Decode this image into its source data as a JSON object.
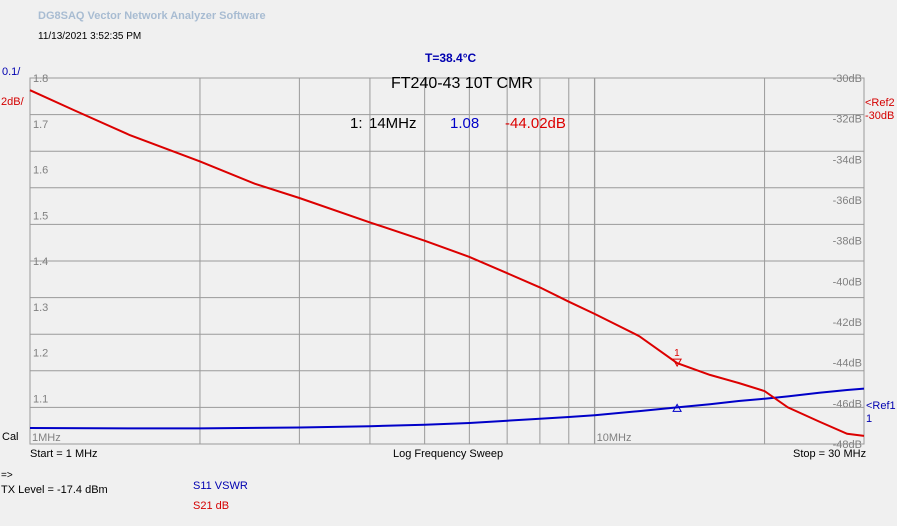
{
  "app_title": "DG8SAQ Vector Network Analyzer Software",
  "timestamp": "11/13/2021   3:52:35 PM",
  "temperature": "T=38.4°C",
  "left_scale": "0.1/",
  "left_ref": "2dB/",
  "right_ref2": [
    "<Ref2",
    "-30dB"
  ],
  "right_ref1": [
    "<Ref1",
    "1"
  ],
  "cal_label": "Cal",
  "footer": {
    "start": "Start = 1 MHz",
    "sweep": "Log Frequency Sweep",
    "stop": "Stop = 30 MHz"
  },
  "tx_arrow": "=>",
  "tx_level": "TX Level = -17.4 dBm",
  "legend": {
    "s11": "S11  VSWR",
    "s21": "S21  dB"
  },
  "colors": {
    "s11": "#0000c8",
    "s21": "#dc0000",
    "grid": "#9a9a9a",
    "bg": "#f0f0f0"
  },
  "chart_data": {
    "type": "line",
    "title": "FT240-43 10T CMR",
    "marker_readout": {
      "label": "1:",
      "freq": "14MHz",
      "vswr": "1.08",
      "s21": "-44.02dB"
    },
    "x_scale": "log",
    "xlim_mhz": [
      1,
      30
    ],
    "x_tick_labels": [
      {
        "value": 1,
        "label": "1MHz"
      },
      {
        "value": 10,
        "label": "10MHz"
      }
    ],
    "left_axis": {
      "ylim": [
        1.0,
        1.8
      ],
      "ticks": [
        "1.8",
        "1.7",
        "1.6",
        "1.5",
        "1.4",
        "1.3",
        "1.2",
        "1.1"
      ]
    },
    "right_axis": {
      "ylim": [
        -48,
        -30
      ],
      "ticks": [
        "-30dB",
        "-32dB",
        "-34dB",
        "-36dB",
        "-38dB",
        "-40dB",
        "-42dB",
        "-44dB",
        "-46dB",
        "-48dB"
      ]
    },
    "grid": true,
    "series": [
      {
        "name": "S11  VSWR",
        "axis": "left",
        "x": [
          1,
          1.5,
          2,
          3,
          4,
          5,
          6,
          7,
          8,
          9,
          10,
          12,
          14,
          16,
          18,
          20,
          22,
          25,
          28,
          30
        ],
        "values": [
          1.035,
          1.034,
          1.034,
          1.036,
          1.039,
          1.042,
          1.046,
          1.051,
          1.055,
          1.059,
          1.063,
          1.072,
          1.08,
          1.087,
          1.094,
          1.099,
          1.104,
          1.112,
          1.118,
          1.121
        ]
      },
      {
        "name": "S21  dB",
        "axis": "right",
        "x": [
          1,
          1.2,
          1.5,
          2,
          2.5,
          3,
          4,
          5,
          6,
          7,
          8,
          9,
          10,
          12,
          14,
          16,
          18,
          20,
          22,
          25,
          28,
          30
        ],
        "values": [
          -30.6,
          -31.6,
          -32.8,
          -34.1,
          -35.2,
          -35.9,
          -37.1,
          -38.0,
          -38.8,
          -39.6,
          -40.3,
          -41.0,
          -41.6,
          -42.7,
          -44.02,
          -44.6,
          -45.0,
          -45.4,
          -46.2,
          -46.9,
          -47.5,
          -47.6
        ]
      }
    ],
    "marker": {
      "label": "1",
      "x": 14
    }
  }
}
